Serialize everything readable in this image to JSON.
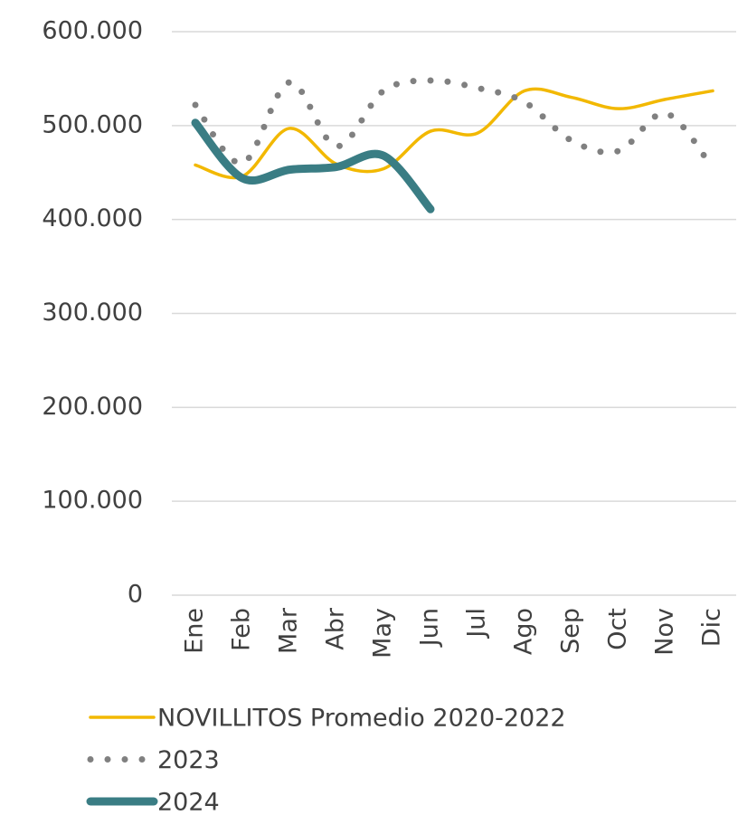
{
  "chart_data": {
    "type": "line",
    "categories": [
      "Ene",
      "Feb",
      "Mar",
      "Abr",
      "May",
      "Jun",
      "Jul",
      "Ago",
      "Sep",
      "Oct",
      "Nov",
      "Dic"
    ],
    "series": [
      {
        "name": "NOVILLITOS Promedio 2020-2022",
        "color": "#f2b800",
        "style": "solid",
        "values": [
          458000,
          446000,
          497000,
          459000,
          454000,
          494000,
          492000,
          537000,
          530000,
          518000,
          528000,
          537000
        ]
      },
      {
        "name": "2023",
        "color": "#808080",
        "style": "dotted",
        "values": [
          522000,
          460000,
          546000,
          478000,
          537000,
          548000,
          540000,
          525000,
          484000,
          473000,
          513000,
          455000
        ]
      },
      {
        "name": "2024",
        "color": "#3a7d84",
        "style": "thick",
        "values": [
          503000,
          444000,
          453000,
          456000,
          468000,
          411000,
          null,
          null,
          null,
          null,
          null,
          null
        ]
      }
    ],
    "ylim": [
      0,
      600000
    ],
    "yticks": [
      0,
      {
        "value": 100000,
        "label": "100.000"
      },
      {
        "value": 200000,
        "label": "200.000"
      },
      {
        "value": 300000,
        "label": "300.000"
      },
      {
        "value": 400000,
        "label": "400.000"
      },
      {
        "value": 500000,
        "label": "500.000"
      },
      {
        "value": 600000,
        "label": "600.000"
      }
    ],
    "grid": true,
    "smooth": true,
    "legend": "bottom"
  }
}
